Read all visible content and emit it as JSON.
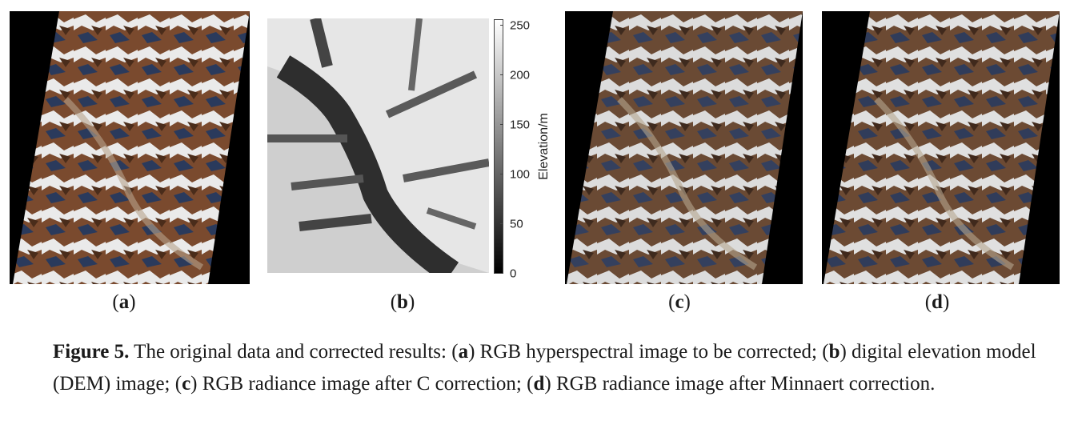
{
  "panels": [
    {
      "id": "a",
      "label_open": "(",
      "label_letter": "a",
      "label_close": ")"
    },
    {
      "id": "b",
      "label_open": "(",
      "label_letter": "b",
      "label_close": ")"
    },
    {
      "id": "c",
      "label_open": "(",
      "label_letter": "c",
      "label_close": ")"
    },
    {
      "id": "d",
      "label_open": "(",
      "label_letter": "d",
      "label_close": ")"
    }
  ],
  "colorbar": {
    "label": "Elevation/m",
    "ticks": [
      "250",
      "200",
      "150",
      "100",
      "50",
      "0"
    ],
    "range": [
      0,
      255
    ]
  },
  "caption": {
    "lead": "Figure 5.",
    "t1": " The original data and corrected results:  (",
    "a": "a",
    "t2": ") RGB hyperspectral image to be corrected; (",
    "b": "b",
    "t3": ") digital elevation model (DEM) image; (",
    "c": "c",
    "t4": ") RGB radiance image after C correction; (",
    "d": "d",
    "t5": ") RGB radiance image after Minnaert correction."
  },
  "colors": {
    "terrain_brown": "#7a4a2e",
    "snow": "#f0f0f0",
    "shadow_blue": "#1e2a4a",
    "background": "#000000"
  }
}
